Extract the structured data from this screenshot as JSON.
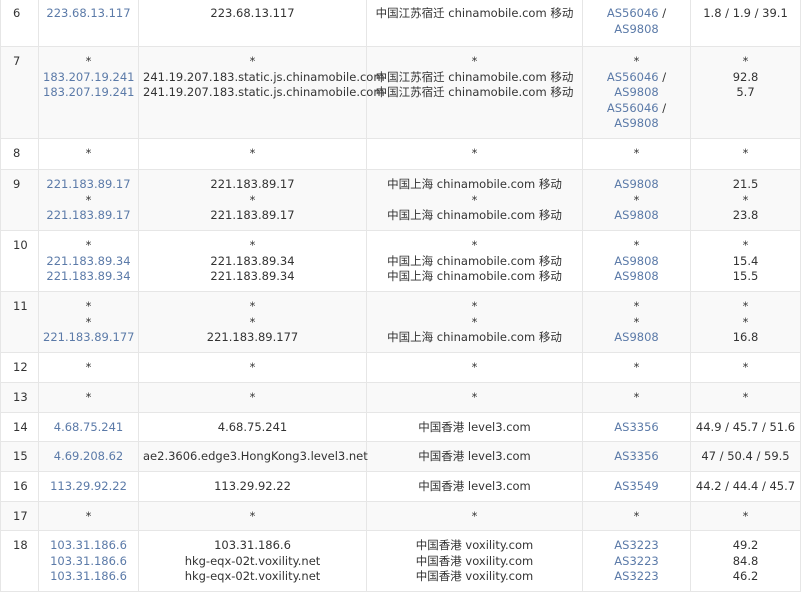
{
  "link_color": "#5b7aa8",
  "hops": [
    {
      "hop": "6",
      "lines": [
        {
          "ip": "223.68.13.117",
          "host": "223.68.13.117",
          "loc": "中国江苏宿迁 chinamobile.com 移动",
          "as": [
            "AS56046",
            "AS9808"
          ],
          "time": "1.8 / 1.9 / 39.1"
        }
      ]
    },
    {
      "hop": "7",
      "lines": [
        {
          "ip": "*",
          "host": "*",
          "loc": "*",
          "as": [
            "*"
          ],
          "time": "*"
        },
        {
          "ip": "183.207.19.241",
          "host": "241.19.207.183.static.js.chinamobile.com",
          "loc": "中国江苏宿迁 chinamobile.com 移动",
          "as": [
            "AS56046",
            "AS9808"
          ],
          "time": "92.8"
        },
        {
          "ip": "183.207.19.241",
          "host": "241.19.207.183.static.js.chinamobile.com",
          "loc": "中国江苏宿迁 chinamobile.com 移动",
          "as": [
            "AS56046",
            "AS9808"
          ],
          "time": "5.7"
        }
      ]
    },
    {
      "hop": "8",
      "lines": [
        {
          "ip": "*",
          "host": "*",
          "loc": "*",
          "as": [
            "*"
          ],
          "time": "*"
        }
      ]
    },
    {
      "hop": "9",
      "lines": [
        {
          "ip": "221.183.89.17",
          "host": "221.183.89.17",
          "loc": "中国上海 chinamobile.com 移动",
          "as": [
            "AS9808"
          ],
          "time": "21.5"
        },
        {
          "ip": "*",
          "host": "*",
          "loc": "*",
          "as": [
            "*"
          ],
          "time": "*"
        },
        {
          "ip": "221.183.89.17",
          "host": "221.183.89.17",
          "loc": "中国上海 chinamobile.com 移动",
          "as": [
            "AS9808"
          ],
          "time": "23.8"
        }
      ]
    },
    {
      "hop": "10",
      "lines": [
        {
          "ip": "*",
          "host": "*",
          "loc": "*",
          "as": [
            "*"
          ],
          "time": "*"
        },
        {
          "ip": "221.183.89.34",
          "host": "221.183.89.34",
          "loc": "中国上海 chinamobile.com 移动",
          "as": [
            "AS9808"
          ],
          "time": "15.4"
        },
        {
          "ip": "221.183.89.34",
          "host": "221.183.89.34",
          "loc": "中国上海 chinamobile.com 移动",
          "as": [
            "AS9808"
          ],
          "time": "15.5"
        }
      ]
    },
    {
      "hop": "11",
      "lines": [
        {
          "ip": "*",
          "host": "*",
          "loc": "*",
          "as": [
            "*"
          ],
          "time": "*"
        },
        {
          "ip": "*",
          "host": "*",
          "loc": "*",
          "as": [
            "*"
          ],
          "time": "*"
        },
        {
          "ip": "221.183.89.177",
          "host": "221.183.89.177",
          "loc": "中国上海 chinamobile.com 移动",
          "as": [
            "AS9808"
          ],
          "time": "16.8"
        }
      ]
    },
    {
      "hop": "12",
      "lines": [
        {
          "ip": "*",
          "host": "*",
          "loc": "*",
          "as": [
            "*"
          ],
          "time": "*"
        }
      ]
    },
    {
      "hop": "13",
      "lines": [
        {
          "ip": "*",
          "host": "*",
          "loc": "*",
          "as": [
            "*"
          ],
          "time": "*"
        }
      ]
    },
    {
      "hop": "14",
      "lines": [
        {
          "ip": "4.68.75.241",
          "host": "4.68.75.241",
          "loc": "中国香港 level3.com",
          "as": [
            "AS3356"
          ],
          "time": "44.9 / 45.7 / 51.6"
        }
      ]
    },
    {
      "hop": "15",
      "lines": [
        {
          "ip": "4.69.208.62",
          "host": "ae2.3606.edge3.HongKong3.level3.net",
          "loc": "中国香港 level3.com",
          "as": [
            "AS3356"
          ],
          "time": "47 / 50.4 / 59.5"
        }
      ]
    },
    {
      "hop": "16",
      "lines": [
        {
          "ip": "113.29.92.22",
          "host": "113.29.92.22",
          "loc": "中国香港 level3.com",
          "as": [
            "AS3549"
          ],
          "time": "44.2 / 44.4 / 45.7"
        }
      ]
    },
    {
      "hop": "17",
      "lines": [
        {
          "ip": "*",
          "host": "*",
          "loc": "*",
          "as": [
            "*"
          ],
          "time": "*"
        }
      ]
    },
    {
      "hop": "18",
      "lines": [
        {
          "ip": "103.31.186.6",
          "host": "103.31.186.6",
          "loc": "中国香港 voxility.com",
          "as": [
            "AS3223"
          ],
          "time": "49.2"
        },
        {
          "ip": "103.31.186.6",
          "host": "hkg-eqx-02t.voxility.net",
          "loc": "中国香港 voxility.com",
          "as": [
            "AS3223"
          ],
          "time": "84.8"
        },
        {
          "ip": "103.31.186.6",
          "host": "hkg-eqx-02t.voxility.net",
          "loc": "中国香港 voxility.com",
          "as": [
            "AS3223"
          ],
          "time": "46.2"
        }
      ]
    }
  ]
}
